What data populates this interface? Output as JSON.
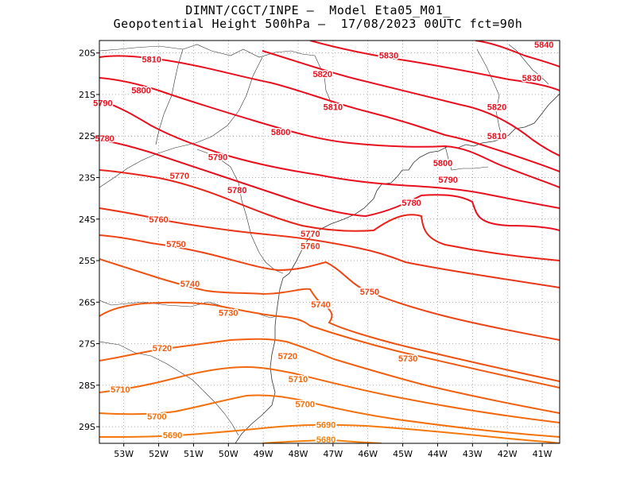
{
  "title": {
    "line1": "DIMNT/CGCT/INPE –  Model Eta05_M01_",
    "line2": "Geopotential Height 500hPa –  17/08/2023 00UTC fct=90h"
  },
  "map": {
    "lon_range": [
      -53.7,
      -40.5
    ],
    "lat_range": [
      -29.4,
      -19.7
    ],
    "lon_ticks": [
      {
        "value": -53,
        "label": "53W"
      },
      {
        "value": -52,
        "label": "52W"
      },
      {
        "value": -51,
        "label": "51W"
      },
      {
        "value": -50,
        "label": "50W"
      },
      {
        "value": -49,
        "label": "49W"
      },
      {
        "value": -48,
        "label": "48W"
      },
      {
        "value": -47,
        "label": "47W"
      },
      {
        "value": -46,
        "label": "46W"
      },
      {
        "value": -45,
        "label": "45W"
      },
      {
        "value": -44,
        "label": "44W"
      },
      {
        "value": -43,
        "label": "43W"
      },
      {
        "value": -42,
        "label": "42W"
      },
      {
        "value": -41,
        "label": "41W"
      }
    ],
    "lat_ticks": [
      {
        "value": -20,
        "label": "20S"
      },
      {
        "value": -21,
        "label": "21S"
      },
      {
        "value": -22,
        "label": "22S"
      },
      {
        "value": -23,
        "label": "23S"
      },
      {
        "value": -24,
        "label": "24S"
      },
      {
        "value": -25,
        "label": "25S"
      },
      {
        "value": -26,
        "label": "26S"
      },
      {
        "value": -27,
        "label": "27S"
      },
      {
        "value": -28,
        "label": "28S"
      },
      {
        "value": -29,
        "label": "29S"
      }
    ],
    "grid": "dotted",
    "contour_colors": {
      "5840": "#e8101e",
      "5830": "#e8101e",
      "5820": "#e8101e",
      "5810": "#e8101e",
      "5800": "#e8101e",
      "5790": "#e8101e",
      "5780": "#e8101e",
      "5770": "#e8241a",
      "5760": "#ea3618",
      "5750": "#ec4414",
      "5740": "#ee5212",
      "5730": "#ef5a12",
      "5720": "#f06010",
      "5710": "#f2680e",
      "5700": "#f3700d",
      "5690": "#f4780c",
      "5680": "#f5800b"
    },
    "contour_labels": [
      {
        "text": "5840",
        "lon": -40.95,
        "lat": -19.8
      },
      {
        "text": "5830",
        "lon": -45.4,
        "lat": -20.05
      },
      {
        "text": "5830",
        "lon": -41.3,
        "lat": -20.6
      },
      {
        "text": "5820",
        "lon": -47.3,
        "lat": -20.5
      },
      {
        "text": "5820",
        "lon": -42.3,
        "lat": -21.3
      },
      {
        "text": "5810",
        "lon": -52.2,
        "lat": -20.15
      },
      {
        "text": "5810",
        "lon": -47.0,
        "lat": -21.3
      },
      {
        "text": "5810",
        "lon": -42.3,
        "lat": -22.0
      },
      {
        "text": "5800",
        "lon": -52.5,
        "lat": -20.9
      },
      {
        "text": "5800",
        "lon": -48.5,
        "lat": -21.9
      },
      {
        "text": "5800",
        "lon": -43.85,
        "lat": -22.65
      },
      {
        "text": "5790",
        "lon": -53.6,
        "lat": -21.2
      },
      {
        "text": "5790",
        "lon": -50.3,
        "lat": -22.5
      },
      {
        "text": "5790",
        "lon": -43.7,
        "lat": -23.05
      },
      {
        "text": "5780",
        "lon": -53.55,
        "lat": -22.05
      },
      {
        "text": "5780",
        "lon": -49.75,
        "lat": -23.3
      },
      {
        "text": "5780",
        "lon": -44.75,
        "lat": -23.6
      },
      {
        "text": "5770",
        "lon": -51.4,
        "lat": -22.95
      },
      {
        "text": "5770",
        "lon": -47.65,
        "lat": -24.35
      },
      {
        "text": "5760",
        "lon": -52.0,
        "lat": -24.0
      },
      {
        "text": "5760",
        "lon": -47.65,
        "lat": -24.65
      },
      {
        "text": "5750",
        "lon": -51.5,
        "lat": -24.6
      },
      {
        "text": "5750",
        "lon": -45.95,
        "lat": -25.75
      },
      {
        "text": "5740",
        "lon": -51.1,
        "lat": -25.55
      },
      {
        "text": "5740",
        "lon": -47.35,
        "lat": -26.05
      },
      {
        "text": "5730",
        "lon": -50.0,
        "lat": -26.25
      },
      {
        "text": "5730",
        "lon": -44.85,
        "lat": -27.35
      },
      {
        "text": "5720",
        "lon": -51.9,
        "lat": -27.1
      },
      {
        "text": "5720",
        "lon": -48.3,
        "lat": -27.3
      },
      {
        "text": "5710",
        "lon": -53.1,
        "lat": -28.1
      },
      {
        "text": "5710",
        "lon": -48.0,
        "lat": -27.85
      },
      {
        "text": "5700",
        "lon": -52.05,
        "lat": -28.75
      },
      {
        "text": "5700",
        "lon": -47.8,
        "lat": -28.45
      },
      {
        "text": "5690",
        "lon": -51.6,
        "lat": -29.2
      },
      {
        "text": "5690",
        "lon": -47.2,
        "lat": -28.95
      },
      {
        "text": "5680",
        "lon": -47.2,
        "lat": -29.3
      }
    ]
  }
}
